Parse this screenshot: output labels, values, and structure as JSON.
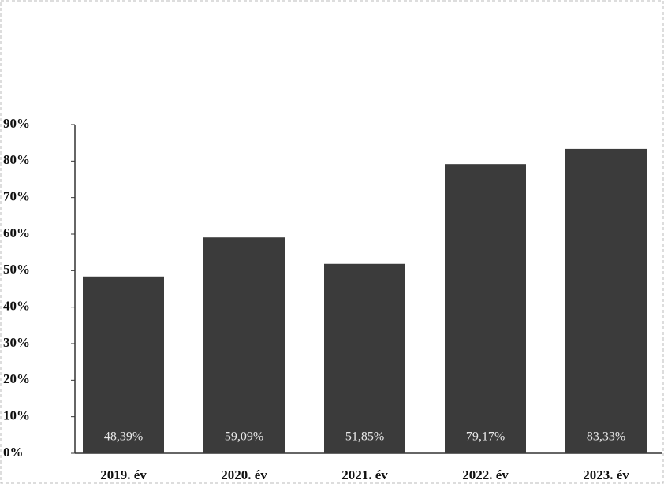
{
  "chart_data": {
    "type": "bar",
    "categories": [
      "2019. év",
      "2020. év",
      "2021. év",
      "2022. év",
      "2023. év"
    ],
    "values": [
      48.39,
      59.09,
      51.85,
      79.17,
      83.33
    ],
    "value_labels": [
      "48,39%",
      "59,09%",
      "51,85%",
      "79,17%",
      "83,33%"
    ],
    "color": "#3b3b3b",
    "ylim": [
      0,
      90
    ],
    "yticks": [
      {
        "value": 0,
        "label": "0%"
      },
      {
        "value": 10,
        "label": "10%"
      },
      {
        "value": 20,
        "label": "20%"
      },
      {
        "value": 30,
        "label": "30%"
      },
      {
        "value": 40,
        "label": "40%"
      },
      {
        "value": 50,
        "label": "50%"
      },
      {
        "value": 60,
        "label": "60%"
      },
      {
        "value": 70,
        "label": "70%"
      },
      {
        "value": 80,
        "label": "80%"
      },
      {
        "value": 90,
        "label": "90%"
      }
    ],
    "grid": false
  }
}
